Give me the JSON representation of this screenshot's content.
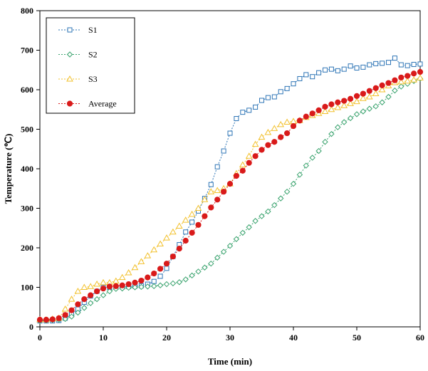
{
  "chart_data": {
    "type": "line",
    "xlabel": "Time (min)",
    "ylabel": "Temperature (℃)",
    "xlim": [
      0,
      60
    ],
    "ylim": [
      0,
      800
    ],
    "xticks": [
      "0",
      "10",
      "20",
      "30",
      "40",
      "50",
      "60"
    ],
    "yticks": [
      "0",
      "100",
      "200",
      "300",
      "400",
      "500",
      "600",
      "700",
      "800"
    ],
    "grid": false,
    "legend_position": "top-left",
    "x": [
      0,
      1,
      2,
      3,
      4,
      5,
      6,
      7,
      8,
      9,
      10,
      11,
      12,
      13,
      14,
      15,
      16,
      17,
      18,
      19,
      20,
      21,
      22,
      23,
      24,
      25,
      26,
      27,
      28,
      29,
      30,
      31,
      32,
      33,
      34,
      35,
      36,
      37,
      38,
      39,
      40,
      41,
      42,
      43,
      44,
      45,
      46,
      47,
      48,
      49,
      50,
      51,
      52,
      53,
      54,
      55,
      56,
      57,
      58,
      59,
      60
    ],
    "series": [
      {
        "name": "S1",
        "color": "#2e75b6",
        "marker": "square",
        "values": [
          15,
          15,
          15,
          16,
          22,
          32,
          45,
          62,
          78,
          90,
          100,
          100,
          100,
          101,
          102,
          103,
          104,
          108,
          115,
          128,
          148,
          178,
          208,
          240,
          265,
          293,
          325,
          360,
          405,
          445,
          490,
          527,
          543,
          548,
          556,
          573,
          580,
          582,
          595,
          603,
          615,
          628,
          638,
          633,
          643,
          650,
          652,
          648,
          652,
          660,
          655,
          657,
          663,
          666,
          667,
          669,
          680,
          663,
          661,
          664,
          665
        ]
      },
      {
        "name": "S2",
        "color": "#3aa36e",
        "marker": "diamond",
        "values": [
          15,
          16,
          17,
          18,
          20,
          26,
          36,
          48,
          60,
          70,
          80,
          90,
          96,
          97,
          99,
          100,
          101,
          102,
          103,
          105,
          108,
          110,
          113,
          120,
          130,
          140,
          150,
          160,
          175,
          190,
          205,
          222,
          238,
          252,
          268,
          280,
          292,
          308,
          325,
          342,
          362,
          385,
          408,
          428,
          445,
          468,
          488,
          505,
          518,
          528,
          538,
          545,
          552,
          558,
          568,
          582,
          598,
          608,
          615,
          622,
          628
        ]
      },
      {
        "name": "S3",
        "color": "#f2c12e",
        "marker": "triangle",
        "values": [
          18,
          18,
          20,
          22,
          45,
          70,
          90,
          100,
          102,
          108,
          112,
          112,
          116,
          125,
          137,
          150,
          165,
          180,
          195,
          210,
          225,
          240,
          255,
          270,
          285,
          300,
          322,
          342,
          345,
          350,
          362,
          388,
          410,
          432,
          462,
          480,
          492,
          502,
          512,
          518,
          520,
          522,
          530,
          535,
          540,
          545,
          550,
          555,
          560,
          565,
          570,
          578,
          582,
          590,
          600,
          610,
          618,
          620,
          622,
          625,
          630
        ]
      },
      {
        "name": "Average",
        "color": "#d91a1a",
        "marker": "circle",
        "values": [
          18,
          18,
          19,
          22,
          30,
          42,
          57,
          70,
          80,
          90,
          97,
          102,
          103,
          105,
          108,
          112,
          117,
          125,
          135,
          147,
          160,
          178,
          198,
          218,
          238,
          258,
          280,
          302,
          322,
          342,
          362,
          382,
          395,
          415,
          432,
          448,
          460,
          468,
          480,
          490,
          508,
          522,
          532,
          540,
          548,
          557,
          563,
          568,
          572,
          577,
          584,
          590,
          597,
          604,
          611,
          617,
          624,
          631,
          635,
          641,
          645
        ]
      }
    ]
  }
}
